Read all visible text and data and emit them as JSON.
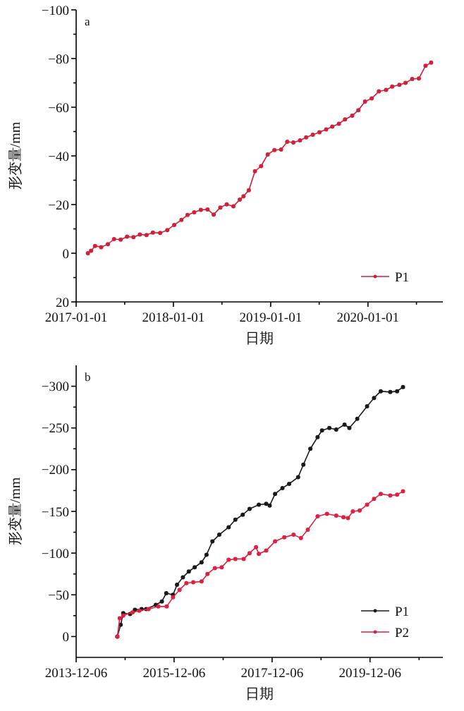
{
  "chart_data": [
    {
      "type": "line",
      "title": "a",
      "xlabel": "日期",
      "ylabel": "形变量/mm",
      "xlim": [
        "2017-01-01",
        "2020-10-08"
      ],
      "ylim": [
        20,
        -100
      ],
      "xticks": [
        "2017-01-01",
        {
          "value": "2017-07-02",
          "label": null
        },
        "2018-01-01",
        {
          "value": "2018-07-02",
          "label": null
        },
        "2019-01-01",
        {
          "value": "2019-07-02",
          "label": null
        },
        "2020-01-01",
        {
          "value": "2020-07-01",
          "label": null
        }
      ],
      "yticks": [
        {
          "value": -100,
          "label": "−100"
        },
        {
          "value": -90,
          "label": null
        },
        {
          "value": -80,
          "label": "−80"
        },
        {
          "value": -70,
          "label": null
        },
        {
          "value": -60,
          "label": "−60"
        },
        {
          "value": -50,
          "label": null
        },
        {
          "value": -40,
          "label": "−40"
        },
        {
          "value": -30,
          "label": null
        },
        {
          "value": -20,
          "label": "−20"
        },
        {
          "value": -10,
          "label": null
        },
        {
          "value": 0,
          "label": "0"
        },
        {
          "value": 10,
          "label": null
        },
        {
          "value": 20,
          "label": "20"
        }
      ],
      "legend": "bottom right",
      "marker": "circle",
      "line_style": "solid",
      "series": [
        {
          "name": "P1",
          "color": "#d0203a",
          "x": [
            "2017-02-14",
            "2017-02-26",
            "2017-03-13",
            "2017-04-05",
            "2017-04-30",
            "2017-05-23",
            "2017-06-17",
            "2017-07-11",
            "2017-08-04",
            "2017-08-28",
            "2017-09-22",
            "2017-10-16",
            "2017-11-12",
            "2017-12-09",
            "2018-01-04",
            "2018-01-31",
            "2018-02-23",
            "2018-03-20",
            "2018-04-14",
            "2018-05-09",
            "2018-06-01",
            "2018-06-26",
            "2018-07-20",
            "2018-08-14",
            "2018-09-07",
            "2018-09-21",
            "2018-10-11",
            "2018-11-03",
            "2018-11-26",
            "2018-12-21",
            "2019-01-15",
            "2019-02-09",
            "2019-03-04",
            "2019-03-27",
            "2019-04-21",
            "2019-05-14",
            "2019-06-08",
            "2019-07-03",
            "2019-07-28",
            "2019-08-20",
            "2019-09-14",
            "2019-10-07",
            "2019-11-03",
            "2019-11-26",
            "2019-12-21",
            "2020-01-15",
            "2020-02-11",
            "2020-03-09",
            "2020-04-01",
            "2020-04-28",
            "2020-05-21",
            "2020-06-15",
            "2020-07-10",
            "2020-08-04",
            "2020-08-25"
          ],
          "values": [
            0,
            -1,
            -3,
            -2.5,
            -3.7,
            -5.8,
            -5.6,
            -6.8,
            -6.6,
            -7.7,
            -7.5,
            -8.5,
            -8.3,
            -9.5,
            -11.6,
            -13.7,
            -15.7,
            -16.8,
            -17.8,
            -18,
            -15.9,
            -18.8,
            -20.1,
            -19.3,
            -22,
            -23.4,
            -25.9,
            -33.7,
            -35.8,
            -40.6,
            -42.4,
            -42.6,
            -45.8,
            -45.5,
            -46.4,
            -47.6,
            -48.7,
            -49.7,
            -50.9,
            -52,
            -53.2,
            -55,
            -56.5,
            -58.8,
            -62.3,
            -63.6,
            -66.5,
            -67.1,
            -68.5,
            -69.2,
            -70,
            -71.6,
            -71.8,
            -77,
            -78.3
          ]
        }
      ]
    },
    {
      "type": "line",
      "title": "b",
      "xlabel": "日期",
      "ylabel": "形变量/mm",
      "xlim": [
        "2013-12-06",
        "2021-06-01"
      ],
      "ylim": [
        25,
        -325
      ],
      "xticks": [
        "2013-12-06",
        {
          "value": "2014-12-06",
          "label": null
        },
        "2015-12-06",
        {
          "value": "2016-12-06",
          "label": null
        },
        "2017-12-06",
        {
          "value": "2018-12-06",
          "label": null
        },
        "2019-12-06",
        {
          "value": "2020-12-06",
          "label": null
        }
      ],
      "yticks": [
        {
          "value": -300,
          "label": "−300"
        },
        {
          "value": -275,
          "label": null
        },
        {
          "value": -250,
          "label": "−250"
        },
        {
          "value": -225,
          "label": null
        },
        {
          "value": -200,
          "label": "−200"
        },
        {
          "value": -175,
          "label": null
        },
        {
          "value": -150,
          "label": "−150"
        },
        {
          "value": -125,
          "label": null
        },
        {
          "value": -100,
          "label": "−100"
        },
        {
          "value": -75,
          "label": null
        },
        {
          "value": -50,
          "label": "−50"
        },
        {
          "value": -25,
          "label": null
        },
        {
          "value": 0,
          "label": "0"
        }
      ],
      "legend": "bottom right",
      "marker": "circle",
      "line_style": "solid",
      "series": [
        {
          "name": "P1",
          "color": "#1a1a1a",
          "x": [
            "2014-10-09",
            "2014-11-03",
            "2014-11-22",
            "2015-01-12",
            "2015-02-17",
            "2015-04-08",
            "2015-05-12",
            "2015-07-23",
            "2015-09-06",
            "2015-10-09",
            "2015-11-28",
            "2015-12-28",
            "2016-02-10",
            "2016-03-25",
            "2016-05-08",
            "2016-06-28",
            "2016-08-04",
            "2016-09-17",
            "2016-11-07",
            "2017-01-16",
            "2017-03-07",
            "2017-05-01",
            "2017-06-21",
            "2017-08-29",
            "2017-10-23",
            "2017-11-18",
            "2017-12-28",
            "2018-02-21",
            "2018-04-12",
            "2018-06-18",
            "2018-07-27",
            "2018-09-17",
            "2018-11-10",
            "2018-12-13",
            "2019-02-06",
            "2019-03-29",
            "2019-05-30",
            "2019-07-05",
            "2019-09-02",
            "2019-11-14",
            "2020-01-05",
            "2020-02-24",
            "2020-05-05",
            "2020-06-25",
            "2020-08-08"
          ],
          "values": [
            0,
            -14,
            -28,
            -27,
            -32,
            -33,
            -33,
            -38,
            -42,
            -52,
            -50,
            -62,
            -71,
            -78,
            -83,
            -89,
            -98,
            -114,
            -122,
            -131,
            -140,
            -146,
            -153,
            -158,
            -159,
            -157,
            -171,
            -178,
            -183,
            -191,
            -206,
            -225,
            -239,
            -247,
            -250,
            -248,
            -254,
            -250,
            -261,
            -276,
            -286,
            -294,
            -293,
            -294,
            -299
          ]
        },
        {
          "name": "P2",
          "color": "#e02040",
          "x": [
            "2014-10-09",
            "2014-10-27",
            "2014-11-22",
            "2015-01-30",
            "2015-03-21",
            "2015-05-30",
            "2015-08-11",
            "2015-10-12",
            "2015-11-28",
            "2016-01-16",
            "2016-03-07",
            "2016-04-27",
            "2016-06-28",
            "2016-08-11",
            "2016-10-05",
            "2016-11-25",
            "2017-01-16",
            "2017-03-07",
            "2017-05-08",
            "2017-06-21",
            "2017-08-08",
            "2017-08-29",
            "2017-10-23",
            "2017-12-28",
            "2018-03-07",
            "2018-05-15",
            "2018-07-09",
            "2018-08-29",
            "2018-11-10",
            "2019-01-19",
            "2019-03-29",
            "2019-05-22",
            "2019-06-25",
            "2019-07-31",
            "2019-09-20",
            "2019-11-14",
            "2020-01-05",
            "2020-02-24",
            "2020-05-05",
            "2020-06-25",
            "2020-08-08"
          ],
          "values": [
            0,
            -22,
            -25,
            -29,
            -31,
            -33,
            -36,
            -36,
            -47,
            -56,
            -64,
            -65,
            -66,
            -75,
            -82,
            -83,
            -92,
            -93,
            -93,
            -100,
            -107,
            -99,
            -103,
            -114,
            -119,
            -122,
            -118,
            -128,
            -144,
            -147,
            -145,
            -143,
            -142,
            -150,
            -151,
            -158,
            -165,
            -171,
            -169,
            -170,
            -174
          ]
        }
      ]
    }
  ]
}
